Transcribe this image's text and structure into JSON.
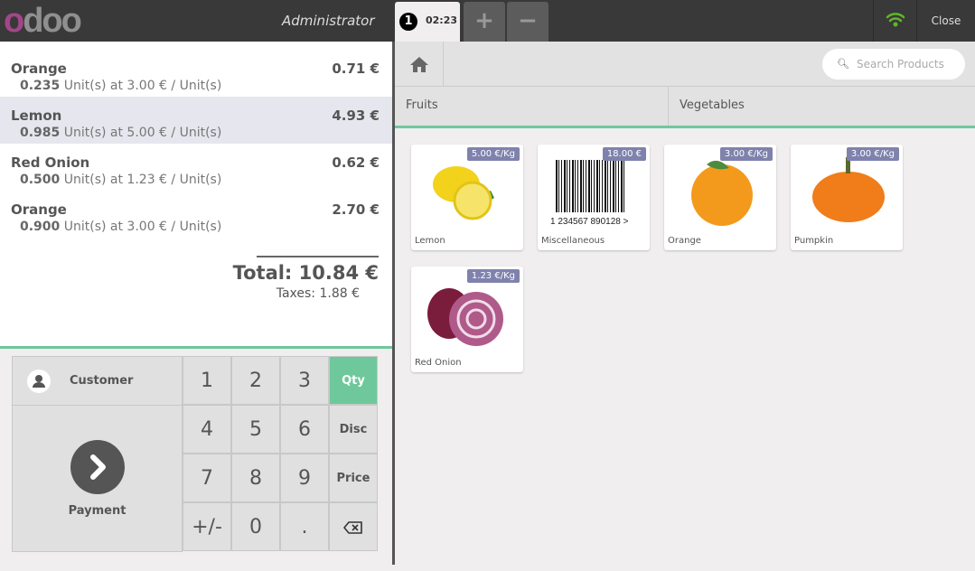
{
  "header": {
    "logo": "odoo",
    "user": "Administrator",
    "order_tab": {
      "number": "1",
      "time": "02:23"
    },
    "add_label": "+",
    "remove_label": "−",
    "close_label": "Close",
    "wifi_color": "#5cb82a"
  },
  "order": {
    "lines": [
      {
        "name": "Orange",
        "price": "0.71 €",
        "qty": "0.235",
        "detail": "Unit(s) at 3.00 € / Unit(s)",
        "selected": false
      },
      {
        "name": "Lemon",
        "price": "4.93 €",
        "qty": "0.985",
        "detail": "Unit(s) at 5.00 € / Unit(s)",
        "selected": true
      },
      {
        "name": "Red Onion",
        "price": "0.62 €",
        "qty": "0.500",
        "detail": "Unit(s) at 1.23 € / Unit(s)",
        "selected": false
      },
      {
        "name": "Orange",
        "price": "2.70 €",
        "qty": "0.900",
        "detail": "Unit(s) at 3.00 € / Unit(s)",
        "selected": false
      }
    ],
    "total": "Total: 10.84 €",
    "taxes": "Taxes: 1.88 €"
  },
  "numpad": {
    "customer": "Customer",
    "payment": "Payment",
    "keys": [
      "1",
      "2",
      "3",
      "4",
      "5",
      "6",
      "7",
      "8",
      "9",
      "+/-",
      "0",
      "."
    ],
    "modes": [
      "Qty",
      "Disc",
      "Price"
    ],
    "active_mode": "Qty",
    "accent": "#6ec89b"
  },
  "products_panel": {
    "search_placeholder": "Search Products",
    "categories": [
      "Fruits",
      "Vegetables"
    ],
    "products": [
      {
        "name": "Lemon",
        "price": "5.00 €/Kg"
      },
      {
        "name": "Miscellaneous",
        "price": "18.00 €",
        "barcode": "1 234567 890128 >"
      },
      {
        "name": "Orange",
        "price": "3.00 €/Kg"
      },
      {
        "name": "Pumpkin",
        "price": "3.00 €/Kg"
      },
      {
        "name": "Red Onion",
        "price": "1.23 €/Kg"
      }
    ],
    "tag_color": "#7f82ac"
  }
}
